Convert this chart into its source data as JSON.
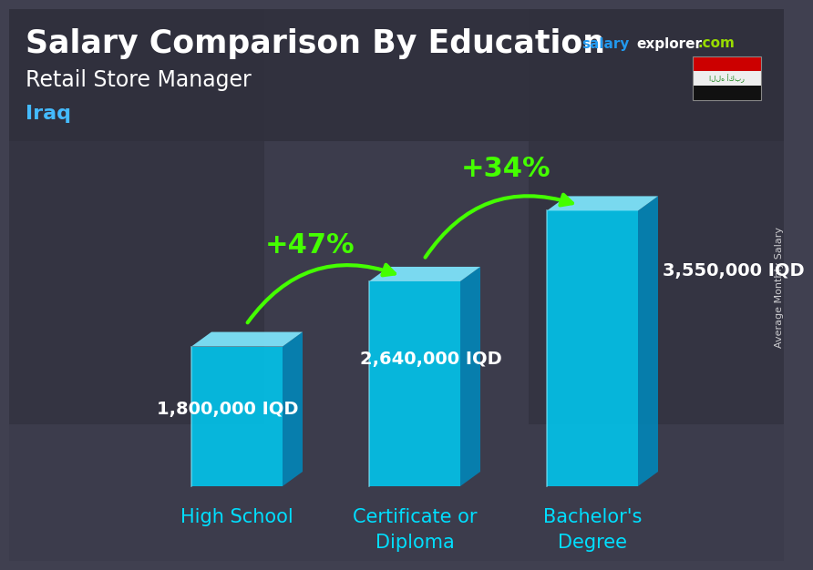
{
  "title": "Salary Comparison By Education",
  "subtitle": "Retail Store Manager",
  "country": "Iraq",
  "categories": [
    "High School",
    "Certificate or\nDiploma",
    "Bachelor's\nDegree"
  ],
  "values": [
    1800000,
    2640000,
    3550000
  ],
  "value_labels": [
    "1,800,000 IQD",
    "2,640,000 IQD",
    "3,550,000 IQD"
  ],
  "pct_labels": [
    "+47%",
    "+34%"
  ],
  "bar_color_face": "#00C8F0",
  "bar_color_top": "#80E8FF",
  "bar_color_side": "#0088BB",
  "arrow_color": "#44FF00",
  "bg_dark": "#404050",
  "bg_header": "#333340",
  "text_color": "#FFFFFF",
  "cat_color": "#00DFFF",
  "ylabel": "Average Monthly Salary",
  "title_fontsize": 25,
  "subtitle_fontsize": 17,
  "country_fontsize": 16,
  "value_fontsize": 14,
  "pct_fontsize": 22,
  "cat_fontsize": 15,
  "ylabel_fontsize": 8
}
